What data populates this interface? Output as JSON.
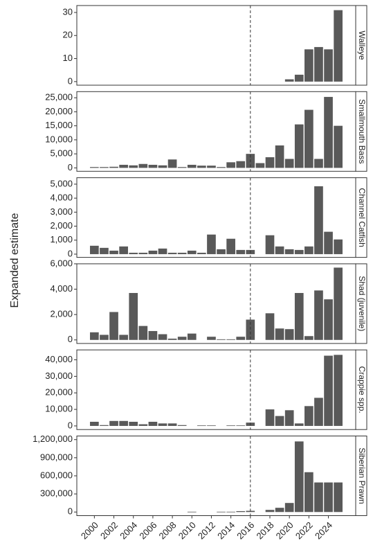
{
  "y_label": "Expanded estimate",
  "chart_data": [
    {
      "type": "bar",
      "strip": "Walleye",
      "color": "#595959",
      "vline": 2016,
      "x": [
        2000,
        2001,
        2002,
        2003,
        2004,
        2005,
        2006,
        2007,
        2008,
        2009,
        2010,
        2011,
        2012,
        2013,
        2014,
        2015,
        2016,
        2017,
        2018,
        2019,
        2020,
        2021,
        2022,
        2023,
        2024,
        2025
      ],
      "values": [
        null,
        null,
        null,
        null,
        null,
        null,
        null,
        null,
        null,
        null,
        null,
        null,
        null,
        null,
        null,
        null,
        null,
        null,
        null,
        null,
        1,
        3,
        14,
        15,
        14,
        31
      ],
      "xlim": [
        1998.2,
        2026.8
      ],
      "ylim": [
        -1.55,
        33
      ],
      "yticks": [
        0,
        10,
        20,
        30
      ]
    },
    {
      "type": "bar",
      "strip": "Smallmouth Bass",
      "color": "#595959",
      "vline": 2016,
      "x": [
        2000,
        2001,
        2002,
        2003,
        2004,
        2005,
        2006,
        2007,
        2008,
        2009,
        2010,
        2011,
        2012,
        2013,
        2014,
        2015,
        2016,
        2017,
        2018,
        2019,
        2020,
        2021,
        2022,
        2023,
        2024,
        2025
      ],
      "values": [
        300,
        300,
        400,
        1100,
        900,
        1400,
        1100,
        900,
        3000,
        300,
        1100,
        800,
        800,
        300,
        2000,
        2400,
        5000,
        1700,
        3800,
        8000,
        3200,
        15500,
        20700,
        3200,
        25300,
        15000
      ],
      "xlim": [
        1998.2,
        2026.8
      ],
      "ylim": [
        -1210,
        27180
      ],
      "yticks": [
        0,
        {
          "value": 5000,
          "label": "5,000"
        },
        {
          "value": 10000,
          "label": "10,000"
        },
        {
          "value": 15000,
          "label": "15,000"
        },
        {
          "value": 20000,
          "label": "20,000"
        },
        {
          "value": 25000,
          "label": "25,000"
        }
      ]
    },
    {
      "type": "bar",
      "strip": "Channel Catfish",
      "color": "#595959",
      "vline": 2016,
      "x": [
        2000,
        2001,
        2002,
        2003,
        2004,
        2005,
        2006,
        2007,
        2008,
        2009,
        2010,
        2011,
        2012,
        2013,
        2014,
        2015,
        2016,
        2017,
        2018,
        2019,
        2020,
        2021,
        2022,
        2023,
        2024,
        2025
      ],
      "values": [
        600,
        450,
        250,
        550,
        100,
        100,
        250,
        400,
        100,
        100,
        250,
        100,
        1400,
        350,
        1100,
        300,
        300,
        null,
        1350,
        550,
        350,
        300,
        550,
        4850,
        1600,
        1050
      ],
      "xlim": [
        1998.2,
        2026.8
      ],
      "ylim": [
        -230,
        5460
      ],
      "yticks": [
        0,
        {
          "value": 1000,
          "label": "1,000"
        },
        {
          "value": 2000,
          "label": "2,000"
        },
        {
          "value": 3000,
          "label": "3,000"
        },
        {
          "value": 4000,
          "label": "4,000"
        },
        {
          "value": 5000,
          "label": "5,000"
        }
      ]
    },
    {
      "type": "bar",
      "strip": "Shad (juvenile)",
      "color": "#595959",
      "vline": 2016,
      "x": [
        2000,
        2001,
        2002,
        2003,
        2004,
        2005,
        2006,
        2007,
        2008,
        2009,
        2010,
        2011,
        2012,
        2013,
        2014,
        2015,
        2016,
        2017,
        2018,
        2019,
        2020,
        2021,
        2022,
        2023,
        2024,
        2025
      ],
      "values": [
        600,
        400,
        2200,
        400,
        3700,
        1100,
        700,
        450,
        100,
        250,
        500,
        null,
        250,
        50,
        50,
        250,
        1600,
        null,
        2100,
        900,
        850,
        3700,
        300,
        3900,
        3200,
        5700
      ],
      "xlim": [
        1998.2,
        2026.8
      ],
      "ylim": [
        -280,
        6000
      ],
      "yticks": [
        0,
        {
          "value": 2000,
          "label": "2,000"
        },
        {
          "value": 4000,
          "label": "4,000"
        },
        {
          "value": 6000,
          "label": "6,000"
        }
      ]
    },
    {
      "type": "bar",
      "strip": "Crappie spp.",
      "color": "#595959",
      "vline": 2016,
      "x": [
        2000,
        2001,
        2002,
        2003,
        2004,
        2005,
        2006,
        2007,
        2008,
        2009,
        2010,
        2011,
        2012,
        2013,
        2014,
        2015,
        2016,
        2017,
        2018,
        2019,
        2020,
        2021,
        2022,
        2023,
        2024,
        2025
      ],
      "values": [
        2500,
        500,
        3000,
        3000,
        2500,
        1000,
        2500,
        1500,
        1500,
        500,
        null,
        300,
        300,
        null,
        300,
        300,
        2000,
        null,
        10000,
        6000,
        9500,
        1500,
        12000,
        17000,
        42500,
        43000
      ],
      "xlim": [
        1998.2,
        2026.8
      ],
      "ylim": [
        -2200,
        46000
      ],
      "yticks": [
        0,
        {
          "value": 10000,
          "label": "10,000"
        },
        {
          "value": 20000,
          "label": "20,000"
        },
        {
          "value": 30000,
          "label": "30,000"
        },
        {
          "value": 40000,
          "label": "40,000"
        }
      ]
    },
    {
      "type": "bar",
      "strip": "Siberian Prawn",
      "color": "#595959",
      "vline": 2016,
      "x": [
        2000,
        2001,
        2002,
        2003,
        2004,
        2005,
        2006,
        2007,
        2008,
        2009,
        2010,
        2011,
        2012,
        2013,
        2014,
        2015,
        2016,
        2017,
        2018,
        2019,
        2020,
        2021,
        2022,
        2023,
        2024,
        2025
      ],
      "values": [
        null,
        null,
        null,
        null,
        null,
        null,
        null,
        null,
        null,
        null,
        5000,
        null,
        null,
        5000,
        5000,
        15000,
        20000,
        null,
        35000,
        70000,
        150000,
        1170000,
        660000,
        490000,
        490000,
        490000
      ],
      "xlim": [
        1998.2,
        2026.8
      ],
      "ylim": [
        -60000,
        1260000
      ],
      "yticks": [
        0,
        {
          "value": 300000,
          "label": "300,000"
        },
        {
          "value": 600000,
          "label": "600,000"
        },
        {
          "value": 900000,
          "label": "900,000"
        },
        {
          "value": 1200000,
          "label": "1,200,000"
        }
      ],
      "xticks": [
        2000,
        2002,
        2004,
        2006,
        2008,
        2010,
        2012,
        2014,
        2016,
        2018,
        2020,
        2022,
        2024
      ]
    }
  ]
}
